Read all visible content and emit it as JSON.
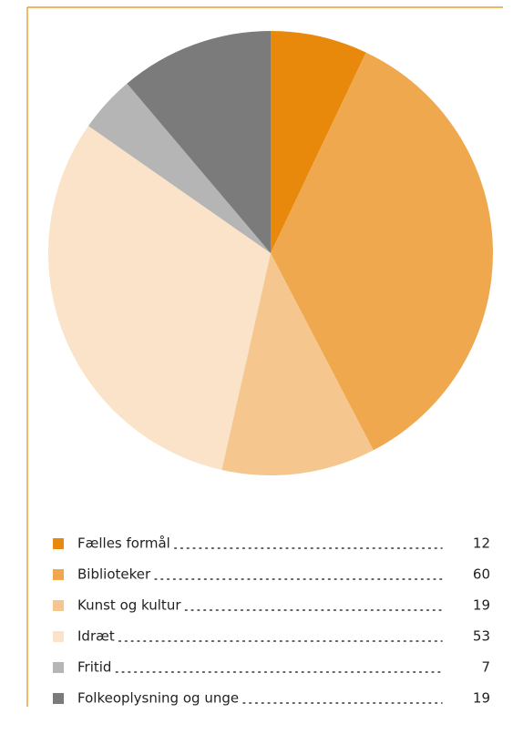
{
  "chart_data": {
    "type": "pie",
    "categories": [
      "Fælles formål",
      "Biblioteker",
      "Kunst og kultur",
      "Idræt",
      "Fritid",
      "Folkeoplysning og unge"
    ],
    "values": [
      12,
      60,
      19,
      53,
      7,
      19
    ],
    "colors": [
      "#e8890c",
      "#f0a84e",
      "#f5c68e",
      "#fae3c8",
      "#b5b5b5",
      "#7b7b7b"
    ]
  }
}
